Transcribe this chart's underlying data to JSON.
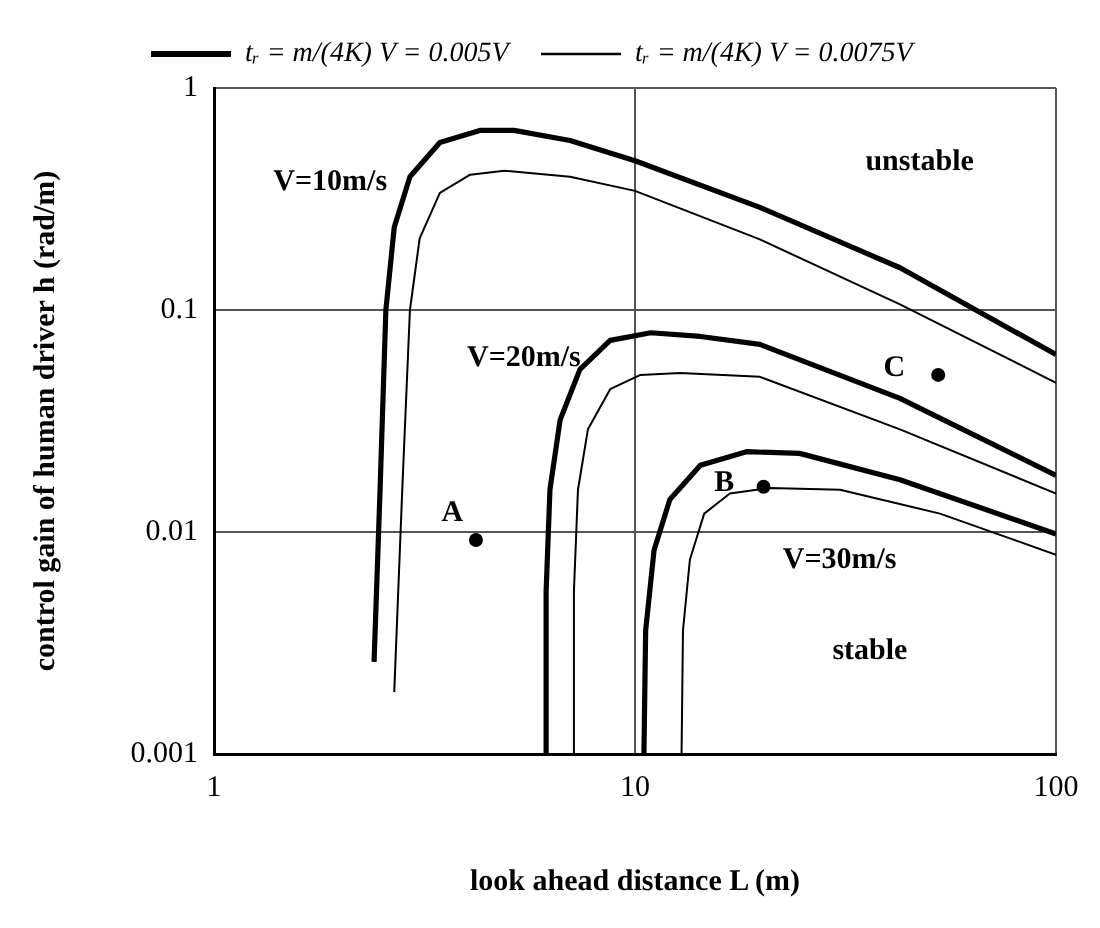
{
  "chart_data": {
    "type": "line",
    "xlabel": "look ahead distance L (m)",
    "ylabel": "control gain of human driver h (rad/m)",
    "log": "xy",
    "grid": true,
    "legend": "top",
    "marker": "none",
    "line_style": "solid",
    "xlim": [
      1,
      100
    ],
    "xticks": [
      1,
      10,
      100
    ],
    "ylim": [
      0.001,
      1
    ],
    "yticks": [
      0.001,
      0.01,
      0.1,
      1
    ],
    "series": [
      {
        "name": "tᵣ = m/(4K) V = 0.005V",
        "color": "#000000",
        "x": [
          2.4,
          2.48,
          2.56,
          2.68,
          2.92,
          3.44,
          4.28,
          5.16,
          7.01,
          10,
          19.8,
          42.6,
          100
        ],
        "values": [
          0.0026,
          0.0155,
          0.1,
          0.236,
          0.398,
          0.568,
          0.644,
          0.644,
          0.58,
          0.47,
          0.29,
          0.155,
          0.063
        ]
      },
      {
        "name": "tᵣ = m/(4K) V = 0.0075V",
        "color": "#000000",
        "x": [
          2.68,
          2.8,
          2.92,
          3.08,
          3.44,
          4.06,
          4.89,
          7.01,
          10,
          19.8,
          42.6,
          100
        ],
        "values": [
          0.0019,
          0.0155,
          0.1,
          0.21,
          0.337,
          0.407,
          0.424,
          0.398,
          0.344,
          0.208,
          0.106,
          0.047
        ]
      },
      {
        "color": "#000000",
        "x": [
          6.15,
          6.15,
          6.28,
          6.64,
          7.4,
          8.73,
          10.9,
          14.3,
          19.8,
          42.6,
          100
        ],
        "values": [
          0.001,
          0.0054,
          0.0155,
          0.032,
          0.054,
          0.073,
          0.079,
          0.076,
          0.07,
          0.04,
          0.018
        ]
      },
      {
        "color": "#000000",
        "x": [
          7.16,
          7.16,
          7.32,
          7.73,
          8.73,
          10.3,
          12.8,
          19.8,
          42.6,
          100
        ],
        "values": [
          0.001,
          0.0054,
          0.0155,
          0.029,
          0.044,
          0.051,
          0.052,
          0.05,
          0.029,
          0.0149
        ]
      },
      {
        "color": "#000000",
        "x": [
          10.5,
          10.6,
          11.1,
          12.1,
          14.3,
          18.4,
          24.6,
          42.6,
          100
        ],
        "values": [
          0.001,
          0.0036,
          0.0083,
          0.014,
          0.02,
          0.023,
          0.0226,
          0.0172,
          0.0098
        ]
      },
      {
        "color": "#000000",
        "x": [
          12.9,
          13.0,
          13.5,
          14.6,
          16.8,
          20.9,
          30.7,
          53.0,
          100
        ],
        "values": [
          0.001,
          0.0036,
          0.0075,
          0.0121,
          0.0149,
          0.0158,
          0.0155,
          0.0121,
          0.0079
        ]
      },
      {
        "type": "scatter",
        "marker": "circle",
        "color": "#000000",
        "x": [
          4.19,
          20.2,
          52.5
        ],
        "values": [
          0.0092,
          0.016,
          0.051
        ]
      }
    ],
    "annotations": [
      "V=10m/s",
      "V=20m/s",
      "V=30m/s",
      "A",
      "B",
      "C",
      "unstable",
      "stable"
    ]
  }
}
